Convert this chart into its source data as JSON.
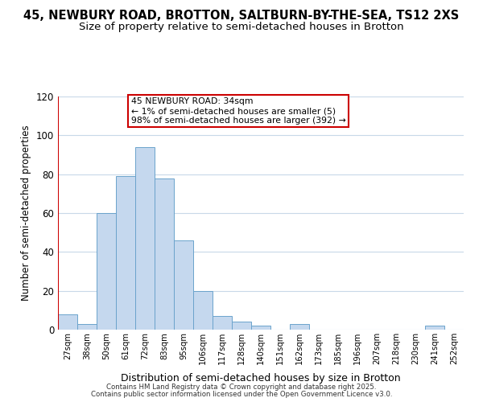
{
  "title": "45, NEWBURY ROAD, BROTTON, SALTBURN-BY-THE-SEA, TS12 2XS",
  "subtitle": "Size of property relative to semi-detached houses in Brotton",
  "xlabel": "Distribution of semi-detached houses by size in Brotton",
  "ylabel": "Number of semi-detached properties",
  "bar_labels": [
    "27sqm",
    "38sqm",
    "50sqm",
    "61sqm",
    "72sqm",
    "83sqm",
    "95sqm",
    "106sqm",
    "117sqm",
    "128sqm",
    "140sqm",
    "151sqm",
    "162sqm",
    "173sqm",
    "185sqm",
    "196sqm",
    "207sqm",
    "218sqm",
    "230sqm",
    "241sqm",
    "252sqm"
  ],
  "bar_values": [
    8,
    3,
    60,
    79,
    94,
    78,
    46,
    20,
    7,
    4,
    2,
    0,
    3,
    0,
    0,
    0,
    0,
    0,
    0,
    2,
    0
  ],
  "bar_color": "#c5d8ee",
  "bar_edge_color": "#6ba3cc",
  "vline_color": "#cc0000",
  "ylim": [
    0,
    120
  ],
  "yticks": [
    0,
    20,
    40,
    60,
    80,
    100,
    120
  ],
  "annotation_title": "45 NEWBURY ROAD: 34sqm",
  "annotation_line1": "← 1% of semi-detached houses are smaller (5)",
  "annotation_line2": "98% of semi-detached houses are larger (392) →",
  "annotation_box_facecolor": "#ffffff",
  "annotation_box_edgecolor": "#cc0000",
  "footer1": "Contains HM Land Registry data © Crown copyright and database right 2025.",
  "footer2": "Contains public sector information licensed under the Open Government Licence v3.0.",
  "background_color": "#ffffff",
  "grid_color": "#c8d8e8"
}
